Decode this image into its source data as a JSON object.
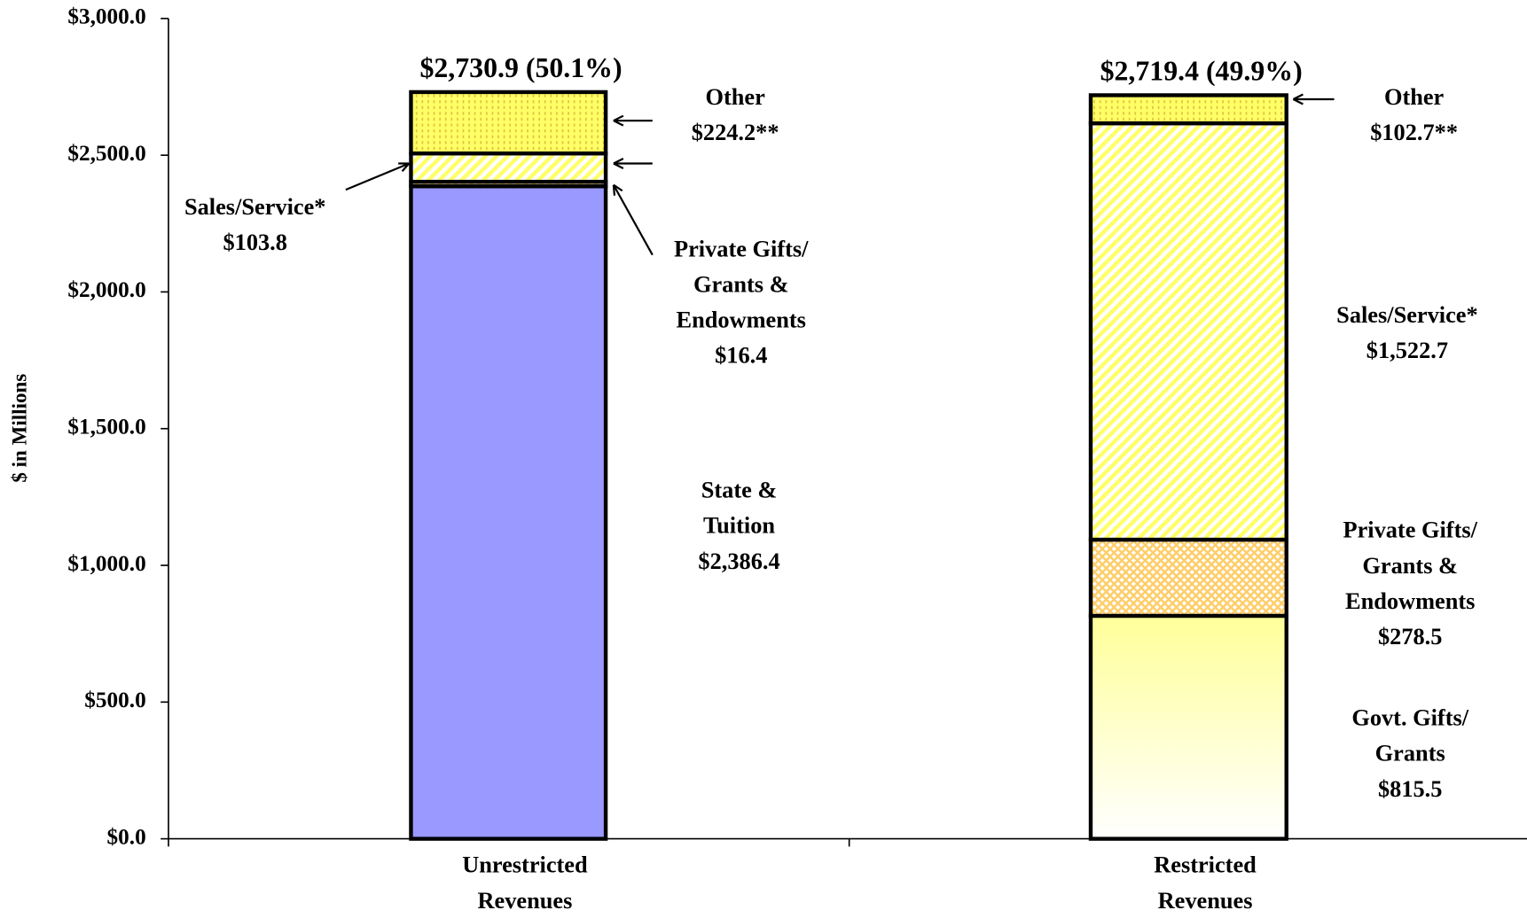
{
  "chart_data": {
    "type": "stacked_bar",
    "y_label": "$ in Millions",
    "categories": [
      "Unrestricted Revenues",
      "Restricted Revenues"
    ],
    "ylim": [
      0,
      3000
    ],
    "yticks": [
      {
        "value": 0,
        "label": "$0.0"
      },
      {
        "value": 500,
        "label": "$500.0"
      },
      {
        "value": 1000,
        "label": "$1,000.0"
      },
      {
        "value": 1500,
        "label": "$1,500.0"
      },
      {
        "value": 2000,
        "label": "$2,000.0"
      },
      {
        "value": 2500,
        "label": "$2,500.0"
      },
      {
        "value": 3000,
        "label": "$3,000.0"
      }
    ],
    "series": [
      {
        "name": "Govt. Gifts/ Grants",
        "color": "#ffff99",
        "pattern": "gradient",
        "values": [
          null,
          815.5
        ],
        "value_labels": [
          null,
          "$815.5"
        ]
      },
      {
        "name": "State & Tuition",
        "color": "#9999ff",
        "pattern": "solid",
        "values": [
          2386.4,
          null
        ],
        "value_labels": [
          "$2,386.4",
          null
        ]
      },
      {
        "name": "Private Gifts/ Grants & Endowments",
        "color": "#ffcc66",
        "pattern": "weave",
        "values": [
          16.4,
          278.5
        ],
        "value_labels": [
          "$16.4",
          "$278.5"
        ]
      },
      {
        "name": "Sales/Service*",
        "color": "#ffff66",
        "pattern": "diagonal",
        "values": [
          103.8,
          1522.7
        ],
        "value_labels": [
          "$103.8",
          "$1,522.7"
        ]
      },
      {
        "name": "Other",
        "color": "#ffff66",
        "pattern": "dots",
        "values": [
          224.2,
          102.7
        ],
        "value_labels": [
          "$224.2**",
          "$102.7**"
        ]
      }
    ],
    "total_labels": [
      "$2,730.9 (50.1%)",
      "$2,719.4 (49.9%)"
    ]
  }
}
